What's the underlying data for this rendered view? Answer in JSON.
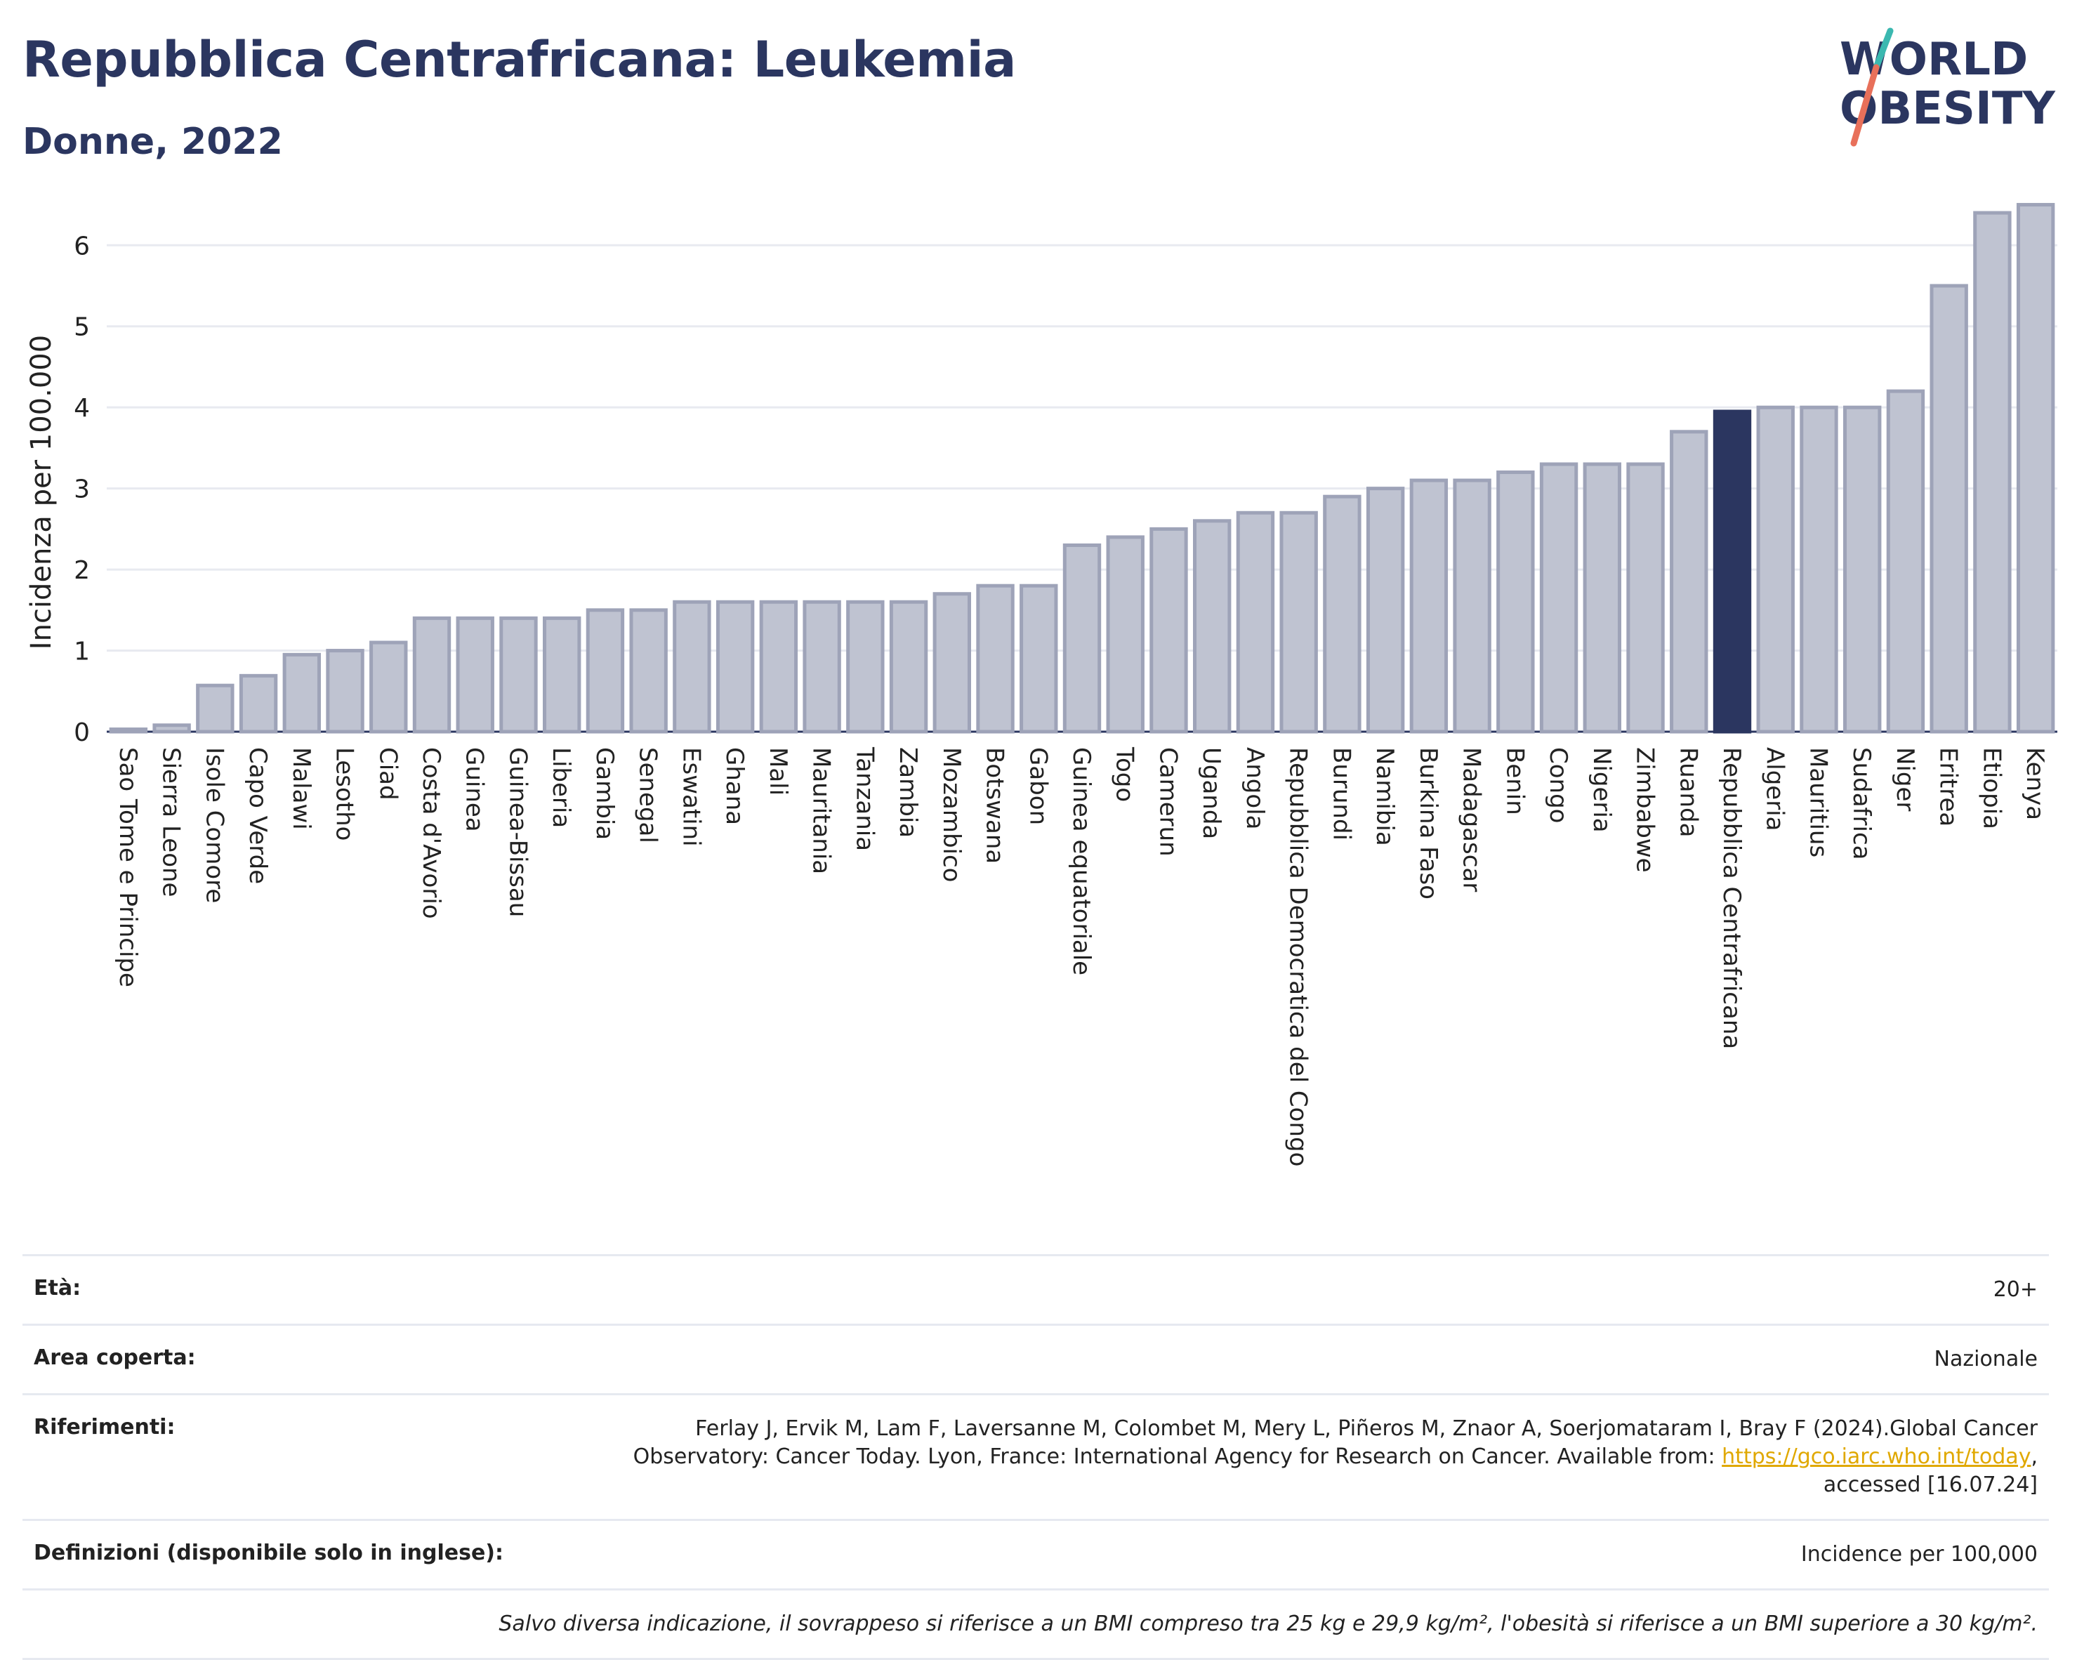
{
  "header": {
    "title": "Repubblica Centrafricana: Leukemia",
    "subtitle": "Donne, 2022"
  },
  "logo": {
    "line1": "WORLD",
    "line2": "OBESITY",
    "colors": [
      "#2b3660",
      "#3bb8b0",
      "#e8705a"
    ]
  },
  "colors": {
    "bar": "#bfc3d1",
    "bar_stroke": "#9ea3b8",
    "highlight": "#2b3660",
    "grid": "#e8eaf0",
    "axis": "#2b3660"
  },
  "chart_data": {
    "type": "bar",
    "ylabel": "Incidenza per 100.000",
    "ylim": [
      0,
      6.6
    ],
    "yticks": [
      0,
      1,
      2,
      3,
      4,
      5,
      6
    ],
    "grid": true,
    "highlight": "Repubblica Centrafricana",
    "categories": [
      "Sao Tome e Principe",
      "Sierra Leone",
      "Isole Comore",
      "Capo Verde",
      "Malawi",
      "Lesotho",
      "Ciad",
      "Costa d'Avorio",
      "Guinea",
      "Guinea-Bissau",
      "Liberia",
      "Gambia",
      "Senegal",
      "Eswatini",
      "Ghana",
      "Mali",
      "Mauritania",
      "Tanzania",
      "Zambia",
      "Mozambico",
      "Botswana",
      "Gabon",
      "Guinea equatoriale",
      "Togo",
      "Camerun",
      "Uganda",
      "Angola",
      "Repubblica Democratica del Congo",
      "Burundi",
      "Namibia",
      "Burkina Faso",
      "Madagascar",
      "Benin",
      "Congo",
      "Nigeria",
      "Zimbabwe",
      "Ruanda",
      "Repubblica Centrafricana",
      "Algeria",
      "Mauritius",
      "Sudafrica",
      "Niger",
      "Eritrea",
      "Etiopia",
      "Kenya"
    ],
    "values": [
      0.03,
      0.08,
      0.57,
      0.69,
      0.95,
      1.0,
      1.1,
      1.4,
      1.4,
      1.4,
      1.4,
      1.5,
      1.5,
      1.6,
      1.6,
      1.6,
      1.6,
      1.6,
      1.6,
      1.7,
      1.8,
      1.8,
      2.3,
      2.4,
      2.5,
      2.6,
      2.7,
      2.7,
      2.9,
      3.0,
      3.1,
      3.1,
      3.2,
      3.3,
      3.3,
      3.3,
      3.7,
      3.95,
      4.0,
      4.0,
      4.0,
      4.2,
      5.5,
      6.4,
      6.5
    ]
  },
  "info": {
    "age_label": "Età:",
    "age_value": "20+",
    "area_label": "Area coperta:",
    "area_value": "Nazionale",
    "refs_label": "Riferimenti:",
    "refs_line1": "Ferlay J, Ervik M, Lam F, Laversanne M, Colombet M, Mery L, Piñeros M, Znaor A, Soerjomataram I, Bray F (2024).Global Cancer",
    "refs_line2": "Observatory: Cancer Today. Lyon, France: International Agency for Research on Cancer. Available from: ",
    "refs_link": "https://gco.iarc.who.int/today",
    "refs_line2_end": ",",
    "refs_line3": "accessed [16.07.24]",
    "defs_label": "Definizioni (disponibile solo in inglese):",
    "defs_value": "Incidence per 100,000",
    "note": "Salvo diversa indicazione, il sovrappeso si riferisce a un BMI compreso tra 25 kg e 29,9 kg/m², l'obesità si riferisce a un BMI superiore a 30 kg/m²."
  }
}
